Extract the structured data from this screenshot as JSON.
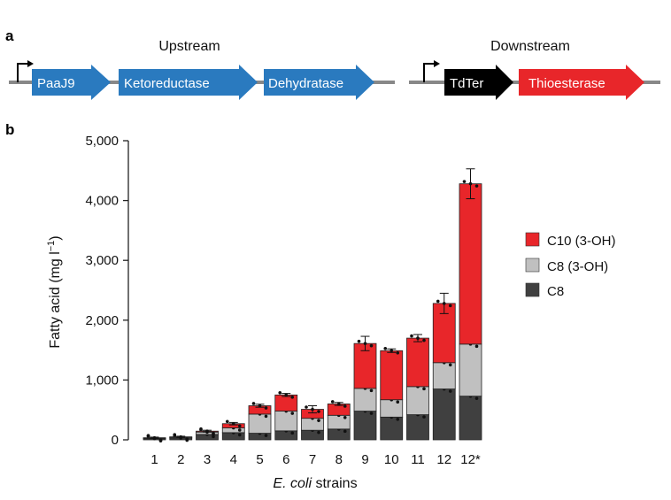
{
  "panel_a": {
    "letter": "a",
    "upstream_label": "Upstream",
    "downstream_label": "Downstream",
    "genes": [
      {
        "name": "PaaJ9",
        "color": "#2a7abf"
      },
      {
        "name": "Ketoreductase",
        "color": "#2a7abf"
      },
      {
        "name": "Dehydratase",
        "color": "#2a7abf"
      },
      {
        "name": "TdTer",
        "color": "#000000"
      },
      {
        "name": "Thioesterase",
        "color": "#e8262a"
      }
    ]
  },
  "panel_b": {
    "letter": "b"
  },
  "chart_data": {
    "type": "bar",
    "stacked": true,
    "categories": [
      "1",
      "2",
      "3",
      "4",
      "5",
      "6",
      "7",
      "8",
      "9",
      "10",
      "11",
      "12",
      "12*"
    ],
    "xlabel_italic": "E. coli",
    "xlabel_rest": " strains",
    "ylabel": "Fatty acid (mg l",
    "ylabel_sup": "−1",
    "ylabel_close": ")",
    "ylim": [
      0,
      5000
    ],
    "yticks": [
      0,
      1000,
      2000,
      3000,
      4000,
      5000
    ],
    "ytick_labels": [
      "0",
      "1,000",
      "2,000",
      "3,000",
      "4,000",
      "5,000"
    ],
    "legend_position": "right",
    "series": [
      {
        "name": "C8",
        "color": "#404040",
        "values": [
          20,
          30,
          90,
          120,
          110,
          150,
          160,
          180,
          480,
          380,
          420,
          850,
          730
        ]
      },
      {
        "name": "C8 (3-OH)",
        "color": "#c0c0c0",
        "values": [
          10,
          15,
          40,
          80,
          320,
          330,
          200,
          230,
          380,
          290,
          470,
          440,
          870
        ]
      },
      {
        "name": "C10 (3-OH)",
        "color": "#e8262a",
        "values": [
          5,
          5,
          15,
          70,
          140,
          270,
          150,
          190,
          750,
          820,
          810,
          990,
          2680
        ]
      }
    ],
    "error_bars": [
      10,
      10,
      15,
      20,
      25,
      25,
      60,
      25,
      120,
      30,
      60,
      170,
      250
    ]
  }
}
